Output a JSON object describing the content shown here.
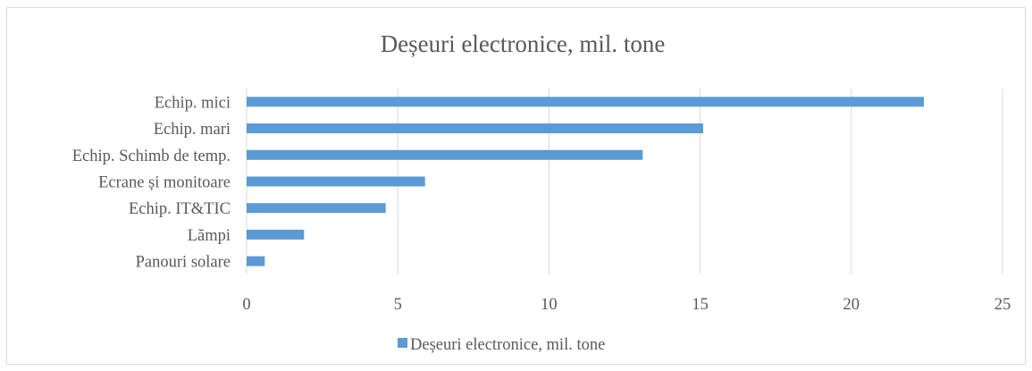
{
  "chart_data": {
    "type": "bar",
    "orientation": "horizontal",
    "title": "Deșeuri electronice, mil. tone",
    "categories": [
      "Echip. mici",
      "Echip. mari",
      "Echip. Schimb de temp.",
      "Ecrane și monitoare",
      "Echip. IT&TIC",
      "Lămpi",
      "Panouri solare"
    ],
    "series": [
      {
        "name": "Deșeuri electronice, mil. tone",
        "color": "#5b9bd5",
        "values": [
          22.4,
          15.1,
          13.1,
          5.9,
          4.6,
          1.9,
          0.6
        ]
      }
    ],
    "xlim": [
      0,
      25
    ],
    "xticks": [
      "0",
      "5",
      "10",
      "15",
      "20",
      "25"
    ],
    "grid": "vertical",
    "legend_position": "bottom"
  }
}
